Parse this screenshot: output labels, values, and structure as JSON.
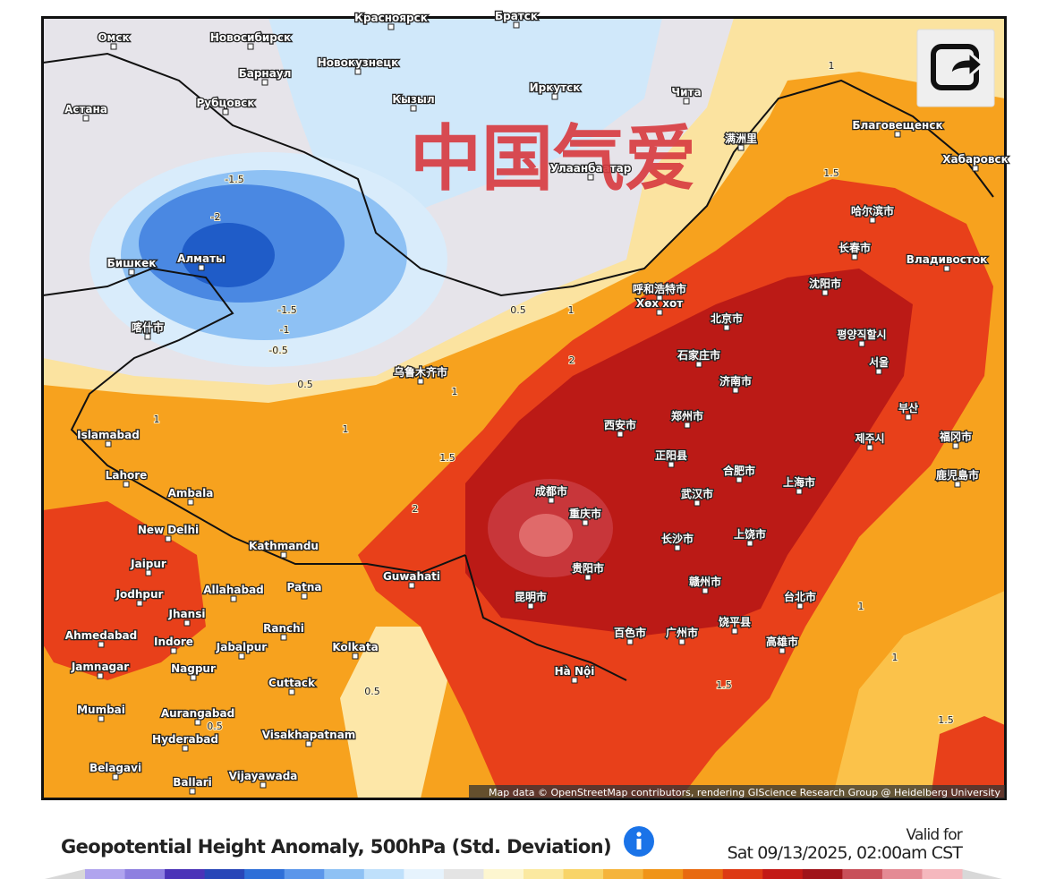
{
  "map": {
    "watermark": "中国气爱",
    "city_labels": [
      "Омск",
      "Новосибирск",
      "Красноярск",
      "Братск",
      "Барнаул",
      "Новокузнецк",
      "Рубцовск",
      "Астана",
      "Кызыл",
      "Иркутск",
      "Чита",
      "满洲里",
      "Благовещенск",
      "Хабаровск",
      "Улаанбаатар",
      "哈尔滨市",
      "长春市",
      "Владивосток",
      "Бишкек",
      "Алматы",
      "呼和浩特市",
      "Хөх хот",
      "沈阳市",
      "北京市",
      "평양직할시",
      "石家庄市",
      "서울",
      "乌鲁木齐市",
      "济南市",
      "喀什市",
      "Islamabad",
      "西安市",
      "郑州市",
      "부산",
      "제주시",
      "Lahore",
      "Ambala",
      "正阳县",
      "合肥市",
      "上海市",
      "成都市",
      "重庆市",
      "武汉市",
      "New Delhi",
      "Kathmandu",
      "长沙市",
      "上饶市",
      "Jaipur",
      "Guwahati",
      "贵阳市",
      "Jodhpur",
      "Allahabad",
      "Patna",
      "赣州市",
      "昆明市",
      "台北市",
      "Jhansi",
      "Ranchi",
      "Ahmedabad",
      "Indore",
      "百色市",
      "广州市",
      "饶平县",
      "高雄市",
      "Jabalpur",
      "Kolkata",
      "Jamnagar",
      "Nagpur",
      "Hà Nội",
      "Cuttack",
      "Mumbai",
      "Aurangabad",
      "Hyderabad",
      "Visakhapatnam",
      "Belagavi",
      "Vijayawada",
      "Ballari",
      "福冈市",
      "鹿児島市"
    ],
    "contour_labels": [
      1,
      1.5,
      -1.5,
      -2,
      -1.5,
      -1,
      -0.5,
      0.5,
      1,
      0.5,
      1,
      2,
      1.5,
      2,
      1,
      1,
      1,
      1.5,
      1.5,
      0.5,
      0.5,
      1
    ],
    "attribution": "Map data © OpenStreetMap contributors, rendering GIScience Research Group @ Heidelberg University"
  },
  "footer": {
    "title": "Geopotential Height Anomaly, 500hPa (Std. Deviation)",
    "valid_label": "Valid for",
    "valid_time": "Sat 09/13/2025, 02:00am CST"
  },
  "legend": {
    "colors": [
      "#b0a4ee",
      "#8e7fe0",
      "#4b33b8",
      "#2846b8",
      "#2e6fd8",
      "#5b96ea",
      "#8ec1f4",
      "#bfe0fb",
      "#e6f3fd",
      "#e4e4e4",
      "#fdf6d0",
      "#fbe9a0",
      "#f8d468",
      "#f5b43b",
      "#f09418",
      "#e86a10",
      "#dd3a14",
      "#c31a16",
      "#a0141a",
      "#c8505a",
      "#e48a94",
      "#f5b8be"
    ]
  }
}
